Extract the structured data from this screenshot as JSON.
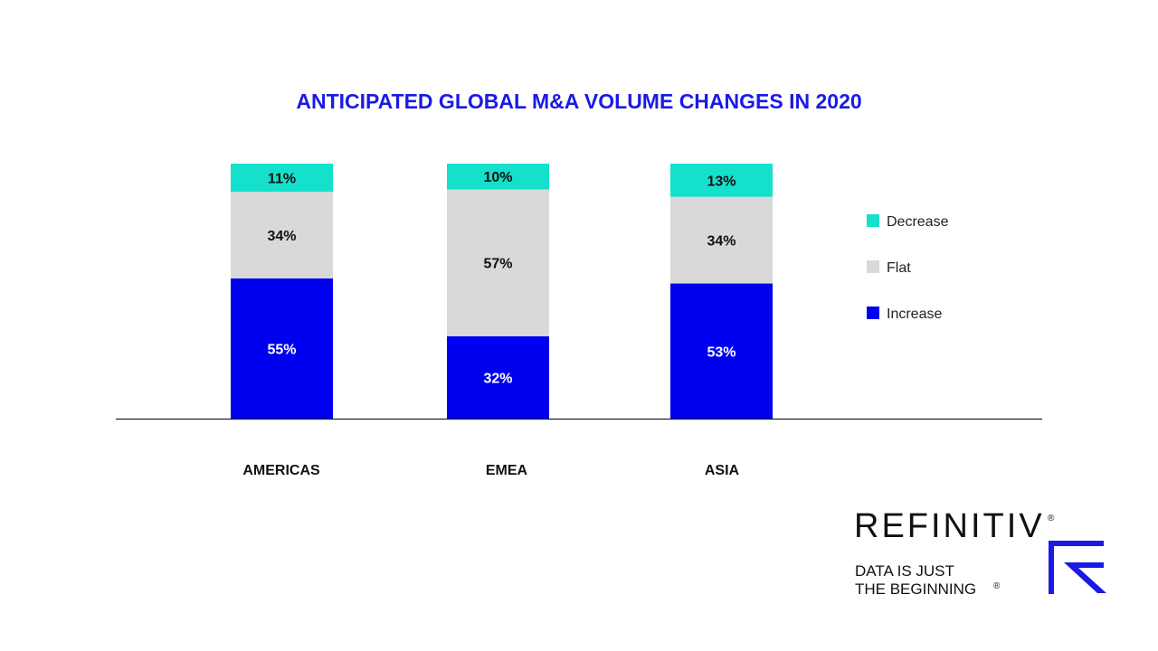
{
  "chart_data": {
    "type": "bar",
    "stacked": true,
    "title": "ANTICIPATED GLOBAL M&A VOLUME CHANGES IN 2020",
    "categories": [
      "AMERICAS",
      "EMEA",
      "ASIA"
    ],
    "series": [
      {
        "name": "Increase",
        "values": [
          55,
          32,
          53
        ],
        "color": "#0000f0",
        "label_color": "#ffffff"
      },
      {
        "name": "Flat",
        "values": [
          34,
          57,
          34
        ],
        "color": "#d9d9d9",
        "label_color": "#111111"
      },
      {
        "name": "Decrease",
        "values": [
          11,
          10,
          13
        ],
        "color": "#14e0cc",
        "label_color": "#111111"
      }
    ],
    "value_suffix": "%",
    "legend_order": [
      "Decrease",
      "Flat",
      "Increase"
    ],
    "legend_position": "right",
    "ylim": [
      0,
      100
    ],
    "grid": false
  },
  "branding": {
    "logo_text": "REFINITIV",
    "registered": "®",
    "tagline_line1": "DATA IS JUST",
    "tagline_line2": "THE BEGINNING",
    "accent": "#1a1ae6"
  }
}
